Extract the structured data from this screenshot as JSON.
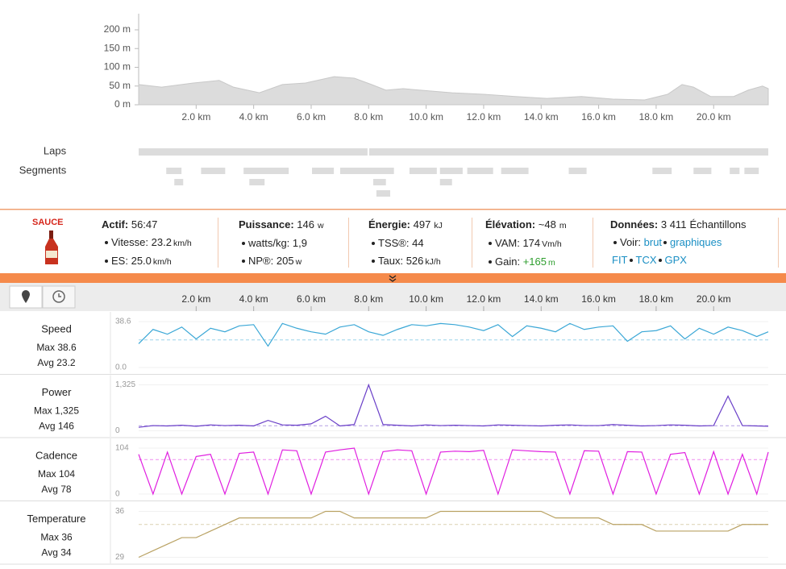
{
  "elevation": {
    "type": "area",
    "color": "#dcdcdc",
    "x": [
      0,
      0.8,
      1.9,
      2.8,
      3.3,
      4.2,
      5.0,
      5.8,
      6.8,
      7.5,
      8.1,
      8.6,
      9.2,
      9.8,
      10.9,
      12.0,
      13.1,
      14.2,
      15.4,
      16.5,
      17.6,
      18.4,
      18.9,
      19.3,
      19.9,
      20.7,
      21.2,
      21.7,
      21.9
    ],
    "values": [
      54,
      47,
      58,
      65,
      47,
      32,
      54,
      58,
      75,
      71,
      54,
      39,
      43,
      39,
      32,
      28,
      22,
      17,
      22,
      15,
      13,
      28,
      54,
      47,
      22,
      22,
      39,
      50,
      43
    ],
    "xlim": [
      0,
      21.9
    ],
    "ylim": [
      0,
      243
    ],
    "yticks": [
      {
        "value": 0,
        "label": "0 m"
      },
      {
        "value": 50,
        "label": "50 m"
      },
      {
        "value": 100,
        "label": "100 m"
      },
      {
        "value": 150,
        "label": "150 m"
      },
      {
        "value": 200,
        "label": "200 m"
      }
    ],
    "xticks": [
      {
        "value": 2,
        "label": "2.0 km"
      },
      {
        "value": 4,
        "label": "4.0 km"
      },
      {
        "value": 6,
        "label": "6.0 km"
      },
      {
        "value": 8,
        "label": "8.0 km"
      },
      {
        "value": 10,
        "label": "10.0 km"
      },
      {
        "value": 12,
        "label": "12.0 km"
      },
      {
        "value": 14,
        "label": "14.0 km"
      },
      {
        "value": 16,
        "label": "16.0 km"
      },
      {
        "value": 18,
        "label": "18.0 km"
      },
      {
        "value": 20,
        "label": "20.0 km"
      }
    ]
  },
  "laps": {
    "label": "Laps",
    "ranges": [
      [
        0,
        7.96
      ],
      [
        8.02,
        21.9
      ]
    ]
  },
  "segments": {
    "label": "Segments",
    "ranges": [
      [
        0.96,
        1.49
      ],
      [
        1.24,
        1.55
      ],
      [
        2.17,
        3.01
      ],
      [
        3.65,
        5.22
      ],
      [
        3.85,
        4.38
      ],
      [
        6.03,
        6.79
      ],
      [
        7.01,
        8.88
      ],
      [
        8.16,
        8.6
      ],
      [
        8.27,
        8.75
      ],
      [
        9.42,
        10.37
      ],
      [
        10.48,
        11.27
      ],
      [
        10.48,
        10.9
      ],
      [
        11.43,
        12.33
      ],
      [
        12.61,
        13.56
      ],
      [
        14.96,
        15.58
      ],
      [
        17.87,
        18.54
      ],
      [
        19.3,
        19.92
      ],
      [
        20.56,
        20.9
      ],
      [
        21.07,
        21.57
      ]
    ]
  },
  "summary": {
    "logo": "SAUCE",
    "groups": [
      {
        "title": "Actif:",
        "value": "56:47",
        "rows": [
          {
            "label": "Vitesse:",
            "value": "23.2",
            "unit": "km/h"
          },
          {
            "label": "ES:",
            "value": "25.0",
            "unit": "km/h"
          }
        ]
      },
      {
        "title": "Puissance:",
        "value": "146",
        "unit": "w",
        "rows": [
          {
            "label": "watts/kg:",
            "value": "1,9"
          },
          {
            "label": "NP®:",
            "value": "205",
            "unit": "w"
          }
        ]
      },
      {
        "title": "Énergie:",
        "value": "497",
        "unit": "kJ",
        "rows": [
          {
            "label": "TSS®:",
            "value": "44"
          },
          {
            "label": "Taux:",
            "value": "526",
            "unit": "kJ/h"
          }
        ]
      },
      {
        "title": "Élévation:",
        "value": "~48",
        "unit": "m",
        "rows": [
          {
            "label": "VAM:",
            "value": "174",
            "unit": "Vm/h"
          },
          {
            "label": "Gain:",
            "value": "+165",
            "unit": "m",
            "color": "#2e9e2e"
          }
        ]
      },
      {
        "title": "Données:",
        "value": "3 411",
        "unit": "Échantillons",
        "rows": [
          {
            "label": "Voir:",
            "links": [
              "brut",
              "graphiques"
            ]
          },
          {
            "links": [
              "FIT",
              "TCX",
              "GPX"
            ]
          }
        ]
      }
    ]
  },
  "streams": {
    "x": [
      0,
      0.5,
      1,
      1.5,
      2,
      2.5,
      3,
      3.5,
      4,
      4.5,
      5,
      5.5,
      6,
      6.5,
      7,
      7.5,
      8,
      8.5,
      9,
      9.5,
      10,
      10.5,
      11,
      11.5,
      12,
      12.5,
      13,
      13.5,
      14,
      14.5,
      15,
      15.5,
      16,
      16.5,
      17,
      17.5,
      18,
      18.5,
      19,
      19.5,
      20,
      20.5,
      21,
      21.5,
      21.9
    ],
    "items": [
      {
        "name": "Speed",
        "max_label": "Max 38.6",
        "avg_label": "Avg 23.2",
        "avg": 23.2,
        "color": "#3aa7d6",
        "ylim": [
          0,
          38.6
        ],
        "yticks": [
          {
            "value": 0,
            "label": "0.0"
          },
          38.6
        ],
        "values": [
          20,
          32,
          28,
          34,
          24,
          33,
          30,
          35,
          36,
          18,
          37,
          33,
          30,
          28,
          34,
          36,
          30,
          27,
          32,
          36,
          35,
          37,
          36,
          34,
          31,
          36,
          26,
          35,
          33,
          30,
          37,
          32,
          34,
          35,
          22,
          30,
          31,
          35,
          24,
          33,
          28,
          34,
          31,
          26,
          30
        ]
      },
      {
        "name": "Power",
        "max_label": "Max 1,325",
        "avg_label": "Avg 146",
        "avg": 146,
        "color": "#6a3fc8",
        "ylim": [
          0,
          1325
        ],
        "yticks": [
          0,
          {
            "value": 1325,
            "label": "1,325"
          }
        ],
        "values": [
          100,
          150,
          140,
          160,
          130,
          170,
          150,
          160,
          140,
          300,
          170,
          160,
          200,
          420,
          140,
          180,
          1325,
          180,
          160,
          140,
          170,
          150,
          160,
          150,
          140,
          170,
          160,
          150,
          140,
          160,
          170,
          150,
          150,
          180,
          160,
          140,
          150,
          170,
          160,
          140,
          150,
          1000,
          150,
          140,
          130
        ]
      },
      {
        "name": "Cadence",
        "max_label": "Max 104",
        "avg_label": "Avg 78",
        "avg": 78,
        "color": "#e01ee0",
        "ylim": [
          0,
          104
        ],
        "yticks": [
          0,
          104
        ],
        "values": [
          90,
          0,
          95,
          0,
          85,
          90,
          0,
          92,
          95,
          0,
          100,
          98,
          0,
          95,
          100,
          104,
          0,
          96,
          100,
          98,
          0,
          95,
          97,
          96,
          99,
          0,
          100,
          98,
          96,
          95,
          0,
          98,
          97,
          0,
          96,
          95,
          0,
          90,
          94,
          0,
          96,
          0,
          90,
          0,
          95
        ]
      },
      {
        "name": "Temperature",
        "max_label": "Max 36",
        "avg_label": "Avg 34",
        "avg": 34,
        "color": "#b9a263",
        "ylim": [
          29,
          36
        ],
        "yticks": [
          29,
          36
        ],
        "values": [
          29,
          30,
          31,
          32,
          32,
          33,
          34,
          35,
          35,
          35,
          35,
          35,
          35,
          36,
          36,
          35,
          35,
          35,
          35,
          35,
          35,
          36,
          36,
          36,
          36,
          36,
          36,
          36,
          36,
          35,
          35,
          35,
          35,
          34,
          34,
          34,
          33,
          33,
          33,
          33,
          33,
          33,
          34,
          34,
          34
        ]
      }
    ]
  }
}
